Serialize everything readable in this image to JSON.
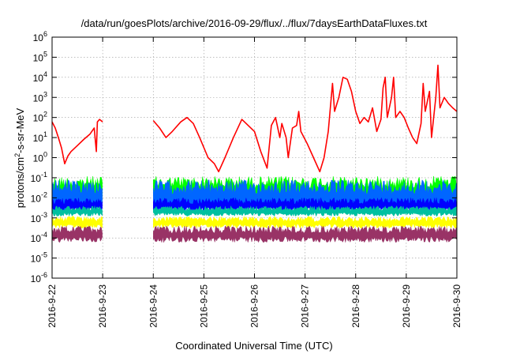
{
  "chart_data": {
    "type": "line",
    "title": "/data/run/goesPlots/archive/2016-09-29/flux/../flux/7daysEarthDataFluxes.txt",
    "xlabel": "Coordinated Universal Time (UTC)",
    "ylabel": {
      "prefix": "protons/cm",
      "sup": "2",
      "suffix": "-s-sr-MeV"
    },
    "y_scale": "log",
    "ylim": [
      1e-06,
      1000000.0
    ],
    "y_ticks": [
      {
        "value": 1e-06,
        "base": "10",
        "exp": "-6"
      },
      {
        "value": 1e-05,
        "base": "10",
        "exp": "-5"
      },
      {
        "value": 0.0001,
        "base": "10",
        "exp": "-4"
      },
      {
        "value": 0.001,
        "base": "10",
        "exp": "-3"
      },
      {
        "value": 0.01,
        "base": "10",
        "exp": "-2"
      },
      {
        "value": 0.1,
        "base": "10",
        "exp": "-1"
      },
      {
        "value": 1.0,
        "base": "10",
        "exp": "0"
      },
      {
        "value": 10.0,
        "base": "10",
        "exp": "1"
      },
      {
        "value": 100.0,
        "base": "10",
        "exp": "2"
      },
      {
        "value": 1000.0,
        "base": "10",
        "exp": "3"
      },
      {
        "value": 10000.0,
        "base": "10",
        "exp": "4"
      },
      {
        "value": 100000.0,
        "base": "10",
        "exp": "5"
      },
      {
        "value": 1000000.0,
        "base": "10",
        "exp": "6"
      }
    ],
    "x_ticks": [
      "2016-9-22",
      "2016-9-23",
      "2016-9-24",
      "2016-9-25",
      "2016-9-26",
      "2016-9-27",
      "2016-9-28",
      "2016-9-29",
      "2016-9-30"
    ],
    "xlim": [
      "2016-09-22",
      "2016-09-30"
    ],
    "grid": true,
    "data_gap": [
      "2016-09-23",
      "2016-09-24"
    ],
    "series": [
      {
        "color": "#ff0000",
        "kind": "line",
        "points": [
          [
            "2016-09-22 00:00",
            60
          ],
          [
            "2016-09-22 01:30",
            30
          ],
          [
            "2016-09-22 03:00",
            10
          ],
          [
            "2016-09-22 04:30",
            3
          ],
          [
            "2016-09-22 06:00",
            0.5
          ],
          [
            "2016-09-22 07:30",
            1.2
          ],
          [
            "2016-09-22 09:00",
            2
          ],
          [
            "2016-09-22 12:00",
            4
          ],
          [
            "2016-09-22 15:00",
            8
          ],
          [
            "2016-09-22 18:00",
            15
          ],
          [
            "2016-09-22 20:00",
            30
          ],
          [
            "2016-09-22 21:00",
            2
          ],
          [
            "2016-09-22 21:30",
            60
          ],
          [
            "2016-09-22 22:30",
            80
          ],
          [
            "2016-09-23 00:00",
            60
          ],
          [
            "2016-09-24 00:00",
            70
          ],
          [
            "2016-09-24 03:00",
            30
          ],
          [
            "2016-09-24 06:00",
            10
          ],
          [
            "2016-09-24 09:00",
            20
          ],
          [
            "2016-09-24 13:00",
            60
          ],
          [
            "2016-09-24 16:00",
            100
          ],
          [
            "2016-09-24 19:00",
            50
          ],
          [
            "2016-09-24 22:00",
            10
          ],
          [
            "2016-09-25 02:00",
            1
          ],
          [
            "2016-09-25 05:00",
            0.5
          ],
          [
            "2016-09-25 07:00",
            0.2
          ],
          [
            "2016-09-25 10:00",
            1
          ],
          [
            "2016-09-25 14:00",
            10
          ],
          [
            "2016-09-25 18:00",
            80
          ],
          [
            "2016-09-26 00:00",
            20
          ],
          [
            "2016-09-26 03:00",
            2
          ],
          [
            "2016-09-26 06:00",
            0.3
          ],
          [
            "2016-09-26 08:00",
            40
          ],
          [
            "2016-09-26 10:00",
            100
          ],
          [
            "2016-09-26 12:00",
            10
          ],
          [
            "2016-09-26 13:00",
            50
          ],
          [
            "2016-09-26 15:00",
            10
          ],
          [
            "2016-09-26 16:00",
            1
          ],
          [
            "2016-09-26 18:00",
            30
          ],
          [
            "2016-09-26 20:00",
            40
          ],
          [
            "2016-09-26 21:00",
            200
          ],
          [
            "2016-09-26 22:00",
            20
          ],
          [
            "2016-09-27 01:00",
            5
          ],
          [
            "2016-09-27 04:00",
            1
          ],
          [
            "2016-09-27 07:00",
            0.2
          ],
          [
            "2016-09-27 09:00",
            1
          ],
          [
            "2016-09-27 11:00",
            20
          ],
          [
            "2016-09-27 13:00",
            5000
          ],
          [
            "2016-09-27 14:00",
            200
          ],
          [
            "2016-09-27 16:00",
            1000
          ],
          [
            "2016-09-27 18:00",
            10000
          ],
          [
            "2016-09-27 20:00",
            8000
          ],
          [
            "2016-09-27 22:00",
            2000
          ],
          [
            "2016-09-28 00:00",
            200
          ],
          [
            "2016-09-28 02:00",
            50
          ],
          [
            "2016-09-28 04:00",
            100
          ],
          [
            "2016-09-28 06:00",
            60
          ],
          [
            "2016-09-28 08:00",
            300
          ],
          [
            "2016-09-28 10:00",
            20
          ],
          [
            "2016-09-28 12:00",
            80
          ],
          [
            "2016-09-28 13:00",
            3000
          ],
          [
            "2016-09-28 14:00",
            10000
          ],
          [
            "2016-09-28 15:00",
            100
          ],
          [
            "2016-09-28 17:00",
            1000
          ],
          [
            "2016-09-28 18:00",
            10000
          ],
          [
            "2016-09-28 19:00",
            100
          ],
          [
            "2016-09-28 21:00",
            200
          ],
          [
            "2016-09-28 23:00",
            100
          ],
          [
            "2016-09-29 01:00",
            30
          ],
          [
            "2016-09-29 03:00",
            10
          ],
          [
            "2016-09-29 05:00",
            5
          ],
          [
            "2016-09-29 07:00",
            50
          ],
          [
            "2016-09-29 08:00",
            5000
          ],
          [
            "2016-09-29 09:00",
            200
          ],
          [
            "2016-09-29 11:00",
            2000
          ],
          [
            "2016-09-29 12:00",
            10
          ],
          [
            "2016-09-29 14:00",
            1000
          ],
          [
            "2016-09-29 15:00",
            40000
          ],
          [
            "2016-09-29 16:00",
            300
          ],
          [
            "2016-09-29 18:00",
            1000
          ],
          [
            "2016-09-29 20:00",
            500
          ],
          [
            "2016-09-29 22:00",
            300
          ],
          [
            "2016-09-30 00:00",
            200
          ]
        ]
      },
      {
        "color": "#00ff00",
        "kind": "band",
        "low": 0.005,
        "high": 0.12
      },
      {
        "color": "#0066ff",
        "kind": "band",
        "low": 0.002,
        "high": 0.08
      },
      {
        "color": "#0000ff",
        "kind": "band",
        "low": 0.002,
        "high": 0.01
      },
      {
        "color": "#00c0a0",
        "kind": "band",
        "low": 0.0012,
        "high": 0.004
      },
      {
        "color": "#ffff00",
        "kind": "band",
        "low": 0.0003,
        "high": 0.0012
      },
      {
        "color": "#993366",
        "kind": "band",
        "low": 6e-05,
        "high": 0.0004
      }
    ]
  }
}
